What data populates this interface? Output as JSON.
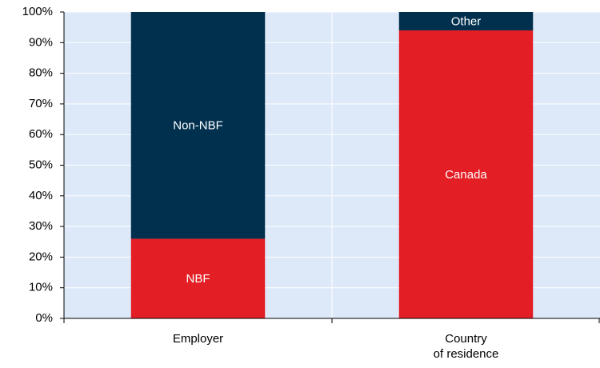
{
  "chart_data": {
    "type": "stacked_bar",
    "categories": [
      "Employer",
      "Country\nof residence"
    ],
    "series": [
      {
        "name": "NBF",
        "color": "#e31e24",
        "values": [
          26,
          null
        ]
      },
      {
        "name": "Non-NBF",
        "color": "#00304e",
        "values": [
          74,
          null
        ]
      },
      {
        "name": "Canada",
        "color": "#e31e24",
        "values": [
          null,
          94
        ]
      },
      {
        "name": "Other",
        "color": "#00304e",
        "values": [
          null,
          6
        ]
      }
    ],
    "ylim": [
      0,
      100
    ],
    "yticks": [
      {
        "value": 0,
        "label": "0%"
      },
      {
        "value": 10,
        "label": "10%"
      },
      {
        "value": 20,
        "label": "20%"
      },
      {
        "value": 30,
        "label": "30%"
      },
      {
        "value": 40,
        "label": "40%"
      },
      {
        "value": 50,
        "label": "50%"
      },
      {
        "value": 60,
        "label": "60%"
      },
      {
        "value": 70,
        "label": "70%"
      },
      {
        "value": 80,
        "label": "80%"
      },
      {
        "value": 90,
        "label": "90%"
      },
      {
        "value": 100,
        "label": "100%"
      }
    ],
    "grid": true,
    "background": "#dde9f9"
  }
}
